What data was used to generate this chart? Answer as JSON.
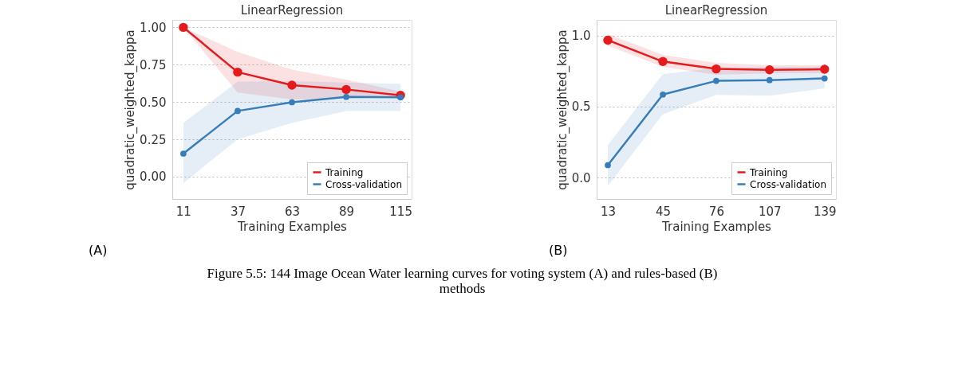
{
  "chart_data": [
    {
      "type": "line",
      "title": "LinearRegression",
      "xlabel": "Training Examples",
      "ylabel": "quadratic_weighted_kappa",
      "x": [
        11,
        37,
        63,
        89,
        115
      ],
      "xlim": [
        5.7,
        120.3
      ],
      "xticks": [
        11,
        37,
        63,
        89,
        115
      ],
      "ylim": [
        -0.15,
        1.05
      ],
      "yticks": [
        {
          "value": 0,
          "label": "0.00"
        },
        {
          "value": 0.25,
          "label": "0.25"
        },
        {
          "value": 0.5,
          "label": "0.50"
        },
        {
          "value": 0.75,
          "label": "0.75"
        },
        {
          "value": 1,
          "label": "1.00"
        }
      ],
      "grid": "y",
      "legend": "bottom right",
      "marker": "circle",
      "line_style": "solid",
      "series": [
        {
          "name": "Training",
          "color": "#e41a1c",
          "values": [
            1.0,
            0.7,
            0.613,
            0.584,
            0.545
          ],
          "lower": [
            1.0,
            0.564,
            0.517,
            0.525,
            0.535
          ],
          "upper": [
            1.0,
            0.835,
            0.717,
            0.65,
            0.57
          ]
        },
        {
          "name": "Cross-validation",
          "color": "#377eb8",
          "values": [
            0.154,
            0.44,
            0.498,
            0.534,
            0.531
          ],
          "lower": [
            -0.044,
            0.25,
            0.36,
            0.44,
            0.44
          ],
          "upper": [
            0.36,
            0.637,
            0.64,
            0.63,
            0.622
          ]
        }
      ],
      "annotations": [
        "(A)",
        "Figure 5.5: 144 Image Ocean Water learning curves for voting system (A) and rules-based (B)\nmethods"
      ]
    },
    {
      "type": "line",
      "title": "LinearRegression",
      "xlabel": "Training Examples",
      "ylabel": "quadratic_weighted_kappa",
      "x": [
        13,
        45,
        76,
        107,
        139
      ],
      "xlim": [
        6.5,
        145.6
      ],
      "xticks": [
        13,
        45,
        76,
        107,
        139
      ],
      "ylim": [
        -0.15,
        1.11
      ],
      "yticks": [
        {
          "value": 0,
          "label": "0.0"
        },
        {
          "value": 0.5,
          "label": "0.5"
        },
        {
          "value": 1,
          "label": "1.0"
        }
      ],
      "grid": "y",
      "legend": "bottom right",
      "marker": "circle",
      "line_style": "solid",
      "series": [
        {
          "name": "Training",
          "color": "#e41a1c",
          "values": [
            0.967,
            0.817,
            0.765,
            0.759,
            0.763
          ],
          "lower": [
            0.93,
            0.779,
            0.724,
            0.735,
            0.735
          ],
          "upper": [
            1.01,
            0.864,
            0.807,
            0.791,
            0.791
          ]
        },
        {
          "name": "Cross-validation",
          "color": "#377eb8",
          "values": [
            0.088,
            0.585,
            0.681,
            0.686,
            0.698
          ],
          "lower": [
            -0.057,
            0.446,
            0.582,
            0.577,
            0.628
          ],
          "upper": [
            0.229,
            0.729,
            0.771,
            0.779,
            0.779
          ]
        }
      ],
      "annotations": [
        "(B)"
      ]
    }
  ]
}
